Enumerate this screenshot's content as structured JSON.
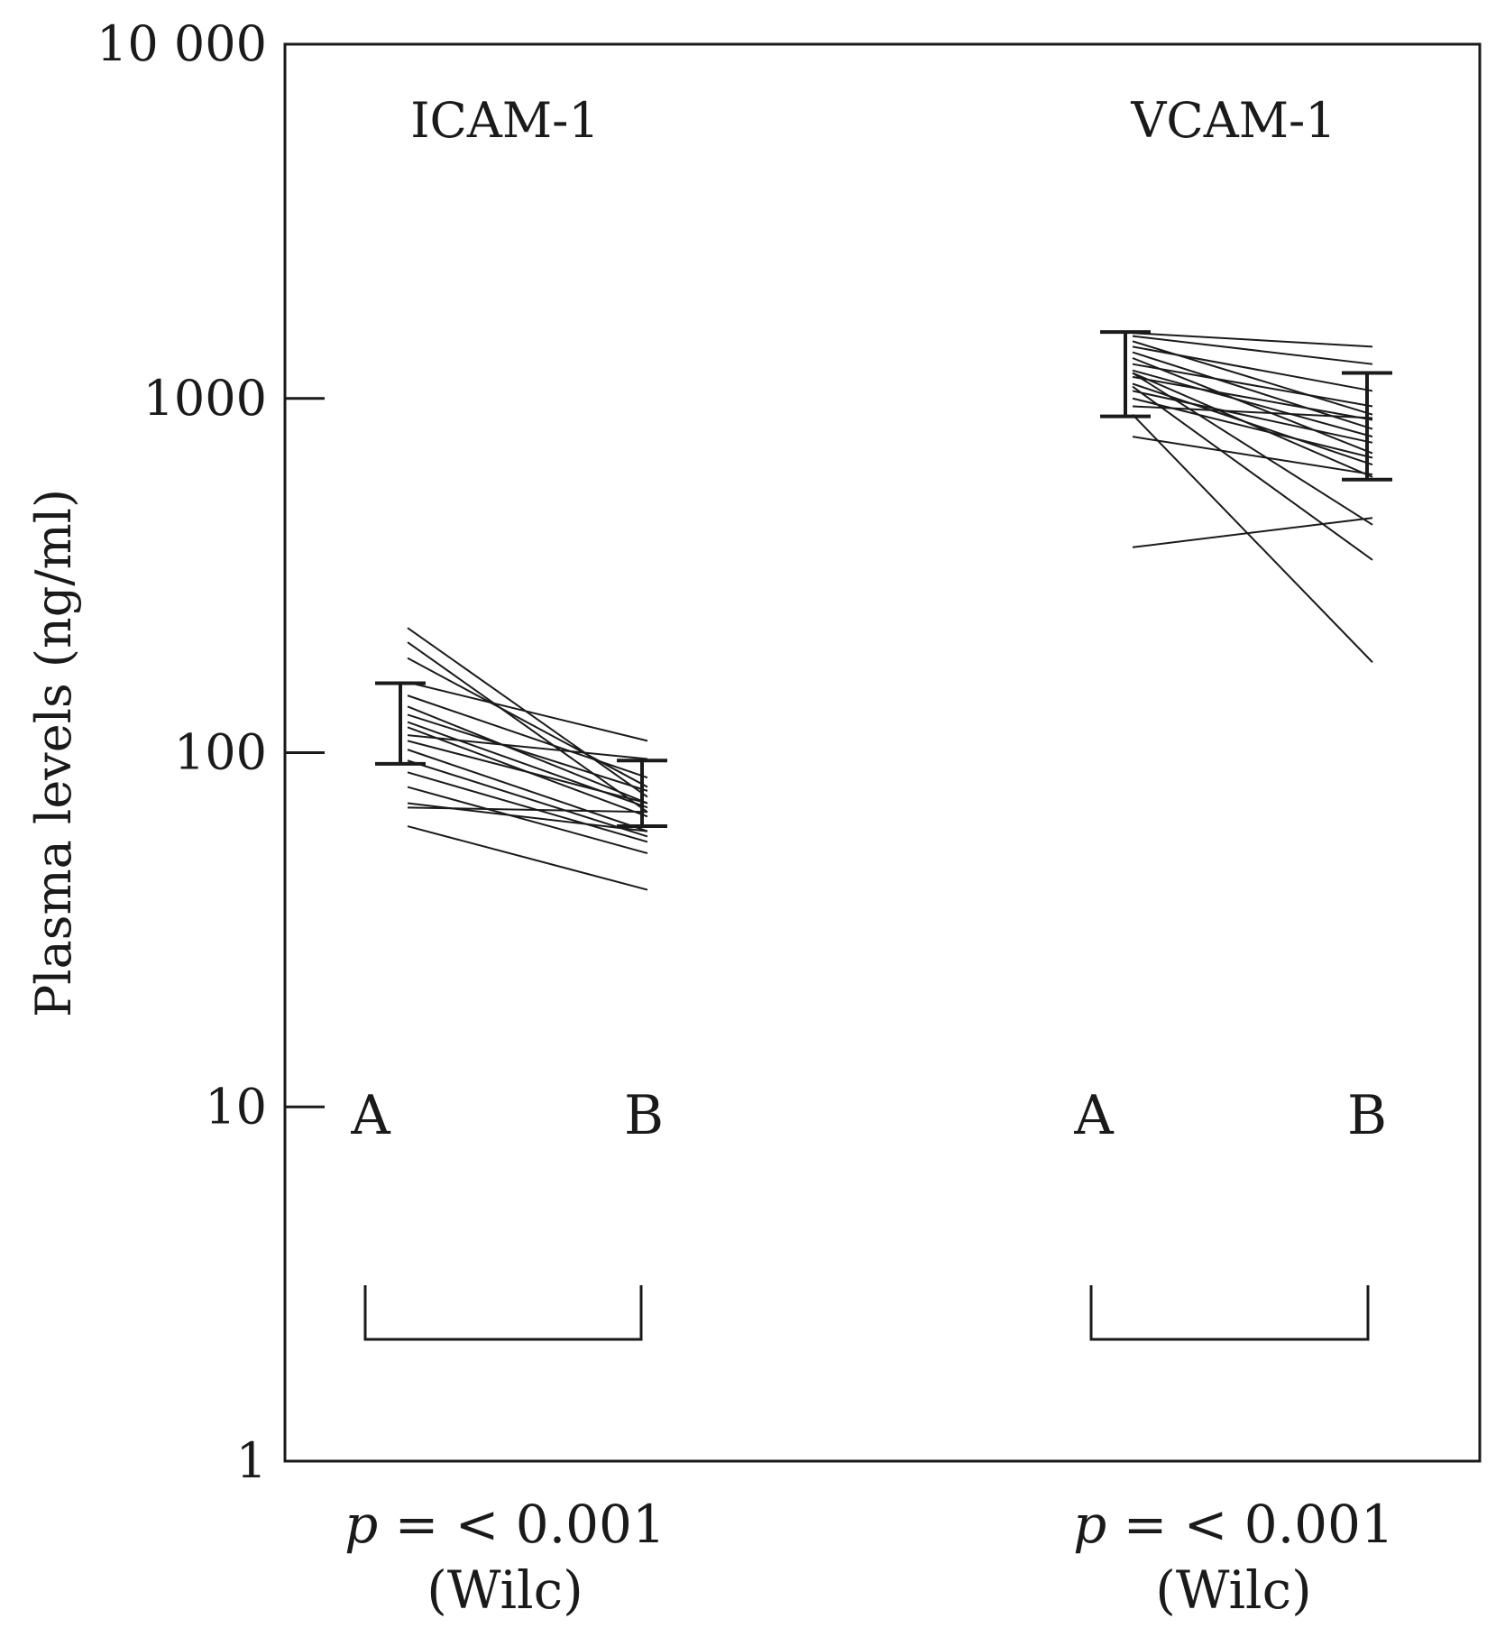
{
  "chart_data": {
    "type": "line",
    "scale": "log",
    "ylabel": "Plasma levels (ng/ml)",
    "ylim": [
      1,
      10000
    ],
    "yticks": [
      {
        "value": 10000,
        "label": "10 000"
      },
      {
        "value": 1000,
        "label": "1000"
      },
      {
        "value": 100,
        "label": "100"
      },
      {
        "value": 10,
        "label": "10"
      },
      {
        "value": 1,
        "label": "1"
      }
    ],
    "groups": [
      {
        "id": "icam",
        "title": "ICAM-1",
        "label_a": "A",
        "label_b": "B",
        "p_text": "p = < 0.001",
        "p_prefix": "p",
        "p_rest": " = < 0.001",
        "test": "(Wilc)",
        "errorbar_a": {
          "low": 93,
          "high": 157
        },
        "errorbar_b": {
          "low": 62,
          "high": 95
        },
        "pairs": [
          [
            225,
            75
          ],
          [
            205,
            68
          ],
          [
            185,
            80
          ],
          [
            158,
            108
          ],
          [
            145,
            85
          ],
          [
            135,
            72
          ],
          [
            128,
            78
          ],
          [
            122,
            70
          ],
          [
            118,
            66
          ],
          [
            112,
            96
          ],
          [
            108,
            72
          ],
          [
            102,
            60
          ],
          [
            95,
            58
          ],
          [
            88,
            56
          ],
          [
            80,
            52
          ],
          [
            72,
            60
          ],
          [
            62,
            41
          ],
          [
            70,
            68
          ]
        ]
      },
      {
        "id": "vcam",
        "title": "VCAM-1",
        "label_a": "A",
        "label_b": "B",
        "p_text": "p = < 0.001",
        "p_prefix": "p",
        "p_rest": " = < 0.001",
        "test": "(Wilc)",
        "errorbar_a": {
          "low": 890,
          "high": 1540
        },
        "errorbar_b": {
          "low": 590,
          "high": 1180
        },
        "pairs": [
          [
            1530,
            1400
          ],
          [
            1500,
            1250
          ],
          [
            1450,
            900
          ],
          [
            1400,
            1050
          ],
          [
            1350,
            820
          ],
          [
            1300,
            700
          ],
          [
            1250,
            950
          ],
          [
            1200,
            780
          ],
          [
            1180,
            600
          ],
          [
            1150,
            870
          ],
          [
            1100,
            650
          ],
          [
            1080,
            350
          ],
          [
            1050,
            750
          ],
          [
            1000,
            680
          ],
          [
            950,
            880
          ],
          [
            900,
            180
          ],
          [
            780,
            610
          ],
          [
            1180,
            440
          ],
          [
            380,
            460
          ]
        ]
      }
    ]
  }
}
